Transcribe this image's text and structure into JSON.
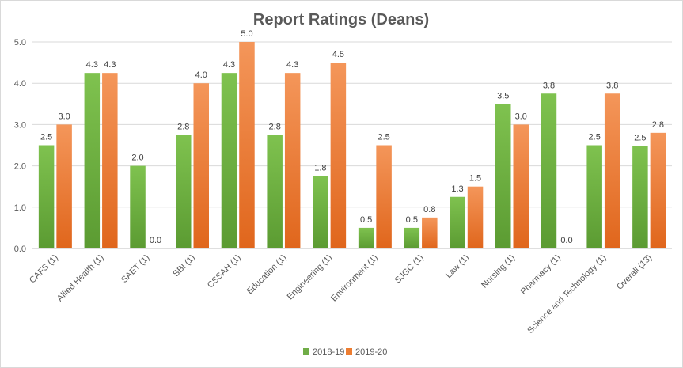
{
  "chart_data": {
    "type": "bar",
    "title": "Report Ratings (Deans)",
    "categories": [
      "CAFS (1)",
      "Allied Health (1)",
      "SAET (1)",
      "SBI (1)",
      "CSSAH (1)",
      "Education (1)",
      "Engineering (1)",
      "Environment (1)",
      "SJGC (1)",
      "Law (1)",
      "Nursing (1)",
      "Pharmacy (1)",
      "Science and Technology (1)",
      "Overall (13)"
    ],
    "series": [
      {
        "name": "2018-19",
        "color": "#70ad47",
        "values": [
          2.5,
          4.25,
          2.0,
          2.75,
          4.25,
          2.75,
          1.75,
          0.5,
          0.5,
          1.25,
          3.5,
          3.75,
          2.5,
          2.48
        ],
        "labels": [
          "2.5",
          "4.3",
          "2.0",
          "2.8",
          "4.3",
          "2.8",
          "1.8",
          "0.5",
          "0.5",
          "1.3",
          "3.5",
          "3.8",
          "2.5",
          "2.5"
        ]
      },
      {
        "name": "2019-20",
        "color": "#ed7d31",
        "values": [
          3.0,
          4.25,
          0.0,
          4.0,
          5.0,
          4.25,
          4.5,
          2.5,
          0.75,
          1.5,
          3.0,
          0.0,
          3.75,
          2.8
        ],
        "labels": [
          "3.0",
          "4.3",
          "0.0",
          "4.0",
          "5.0",
          "4.3",
          "4.5",
          "2.5",
          "0.8",
          "1.5",
          "3.0",
          "0.0",
          "3.8",
          "2.8"
        ]
      }
    ],
    "yticks": [
      "0.0",
      "1.0",
      "2.0",
      "3.0",
      "4.0",
      "5.0"
    ],
    "ylim": [
      0,
      5
    ],
    "xlabel": "",
    "ylabel": "",
    "grid": true,
    "legend_position": "bottom"
  }
}
